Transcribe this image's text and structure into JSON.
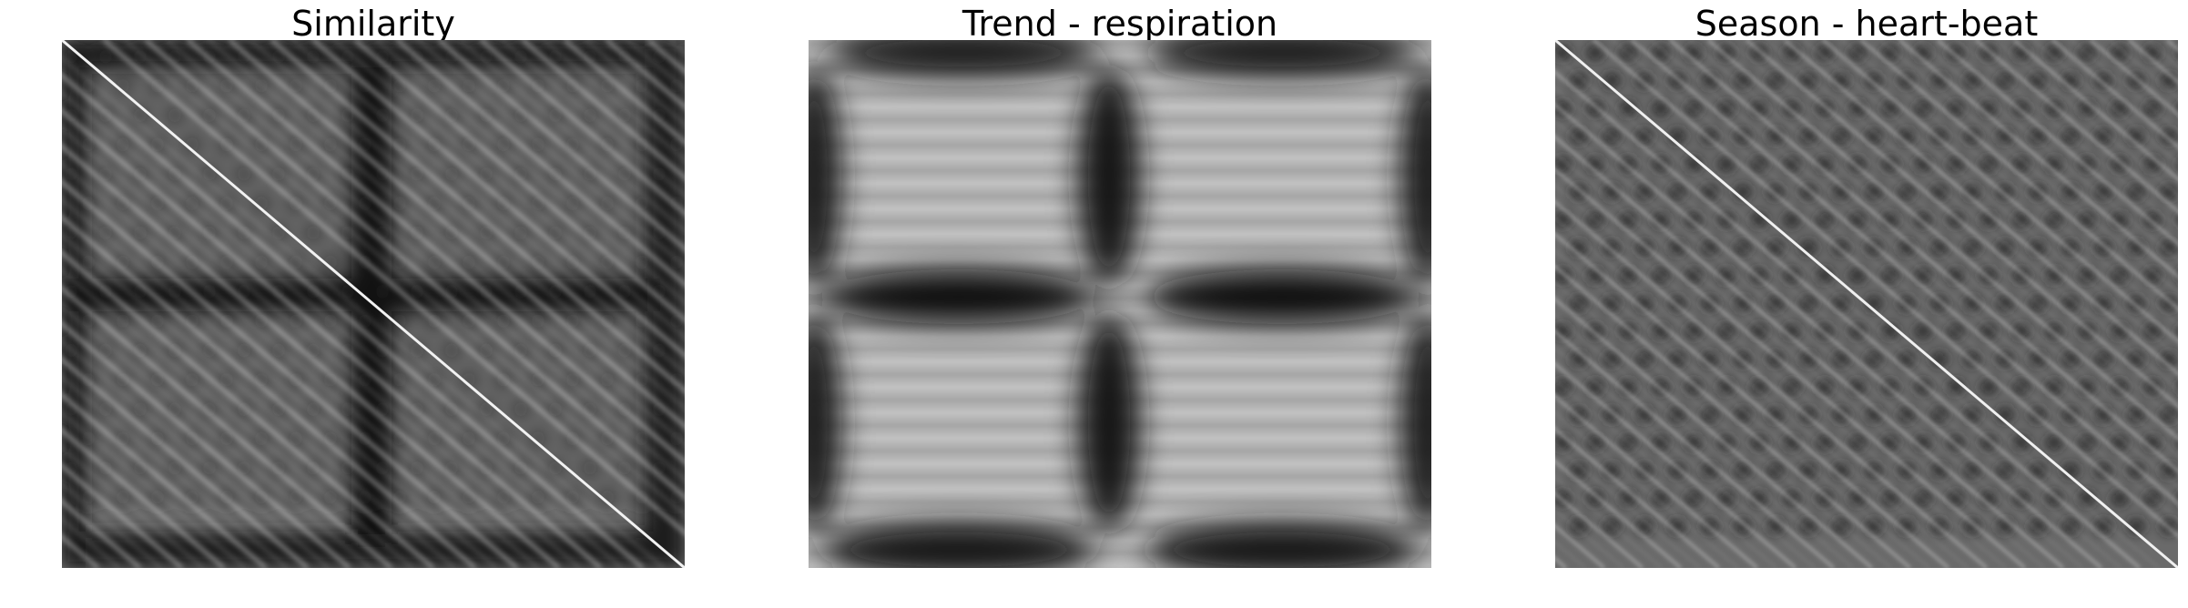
{
  "figure": {
    "colormap": "grayscale",
    "panels": [
      {
        "title": "Similarity",
        "content": "self-similarity matrix with bright main diagonal, periodic diagonal ridges and dark cross bands"
      },
      {
        "title": "Trend - respiration",
        "content": "smooth low-frequency blocks: two light square regions separated by dark horizontal and vertical bands"
      },
      {
        "title": "Season - heart-beat",
        "content": "high-frequency periodic diagonal lattice with bright main diagonal"
      }
    ]
  }
}
